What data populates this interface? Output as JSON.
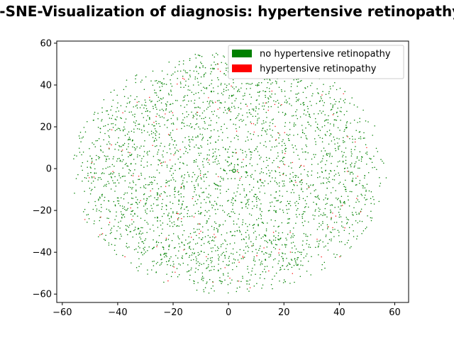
{
  "chart_data": {
    "type": "scatter",
    "title": "t-SNE-Visualization of diagnosis: hypertensive retinopathy",
    "xlabel": "",
    "ylabel": "",
    "xlim": [
      -62,
      65
    ],
    "ylim": [
      -64,
      61
    ],
    "x_ticks": [
      -60,
      -40,
      -20,
      0,
      20,
      40,
      60
    ],
    "y_ticks": [
      -60,
      -40,
      -20,
      0,
      20,
      40,
      60
    ],
    "grid": false,
    "legend_position": "top-right",
    "point_cloud": {
      "count": 3200,
      "center": [
        0,
        -1
      ],
      "x_halfwidth": 57,
      "y_top": 56,
      "y_bottom": -60,
      "positive_fraction": 0.04
    },
    "series": [
      {
        "name": "no hypertensive retinopathy",
        "color": "#008000"
      },
      {
        "name": " hypertensive retinopathy",
        "color": "#ff0000"
      }
    ],
    "highlight_point": {
      "x": 2,
      "y": -1
    }
  }
}
